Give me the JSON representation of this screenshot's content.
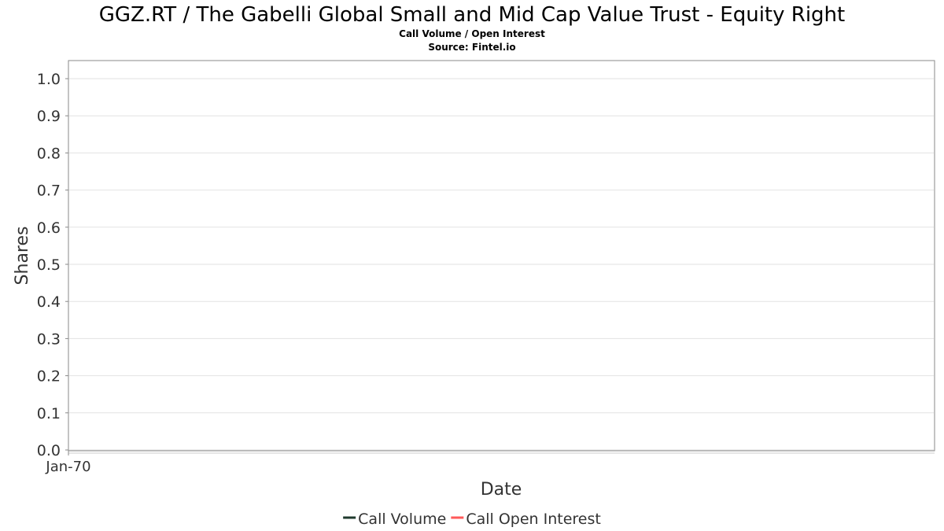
{
  "chart_data": {
    "type": "line",
    "title": "GGZ.RT / The Gabelli Global Small and Mid Cap Value Trust - Equity Right",
    "subtitle": "Call Volume / Open Interest",
    "source": "Source: Fintel.io",
    "xlabel": "Date",
    "ylabel": "Shares",
    "ylim": [
      0.0,
      1.0
    ],
    "y_ticks": [
      "0.0",
      "0.1",
      "0.2",
      "0.3",
      "0.4",
      "0.5",
      "0.6",
      "0.7",
      "0.8",
      "0.9",
      "1.0"
    ],
    "x_ticks": [
      "Jan-70"
    ],
    "grid": true,
    "legend_position": "bottom-center",
    "series": [
      {
        "name": "Call Volume",
        "color": "#1f3a2e",
        "x": [],
        "values": []
      },
      {
        "name": "Call Open Interest",
        "color": "#ff5a5a",
        "x": [],
        "values": []
      }
    ]
  }
}
